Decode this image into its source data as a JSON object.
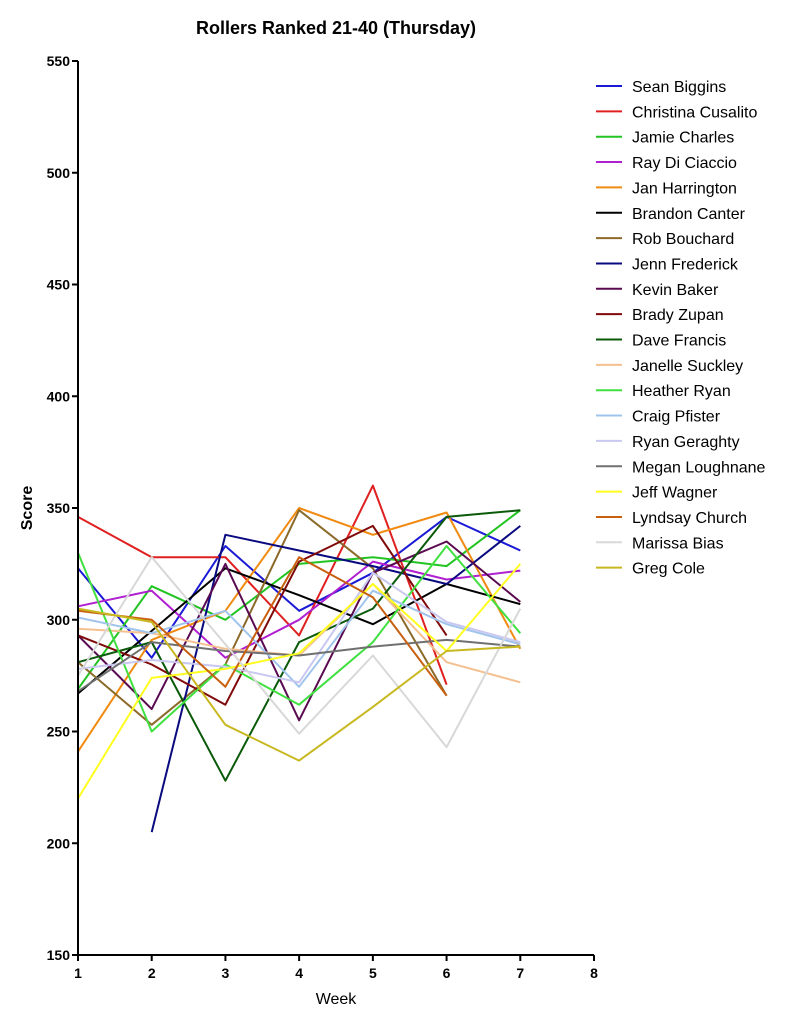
{
  "chart_data": {
    "type": "line",
    "title": "Rollers Ranked 21-40 (Thursday)",
    "xlabel": "Week",
    "ylabel": "Score",
    "xlim": [
      1,
      8
    ],
    "ylim": [
      150,
      550
    ],
    "x_ticks": [
      1,
      2,
      3,
      4,
      5,
      6,
      7,
      8
    ],
    "y_ticks": [
      150,
      200,
      250,
      300,
      350,
      400,
      450,
      500,
      550
    ],
    "legend_position": "right",
    "series": [
      {
        "name": "Sean Biggins",
        "color": "#1a1ad6",
        "x": [
          1,
          2,
          3,
          4,
          5,
          6,
          7
        ],
        "y": [
          323,
          283,
          333,
          304,
          321,
          346,
          331
        ]
      },
      {
        "name": "Christina Cusalito",
        "color": "#e02020",
        "x": [
          1,
          2,
          3,
          4,
          5,
          6
        ],
        "y": [
          346,
          328,
          328,
          293,
          360,
          271
        ]
      },
      {
        "name": "Jamie Charles",
        "color": "#22c422",
        "x": [
          1,
          2,
          3,
          4,
          5,
          6,
          7
        ],
        "y": [
          269,
          315,
          300,
          325,
          328,
          324,
          349
        ]
      },
      {
        "name": "Ray Di Ciaccio",
        "color": "#b020d0",
        "x": [
          1,
          2,
          3,
          4,
          5,
          6,
          7
        ],
        "y": [
          306,
          313,
          283,
          300,
          326,
          318,
          322
        ]
      },
      {
        "name": "Jan Harrington",
        "color": "#f08a10",
        "x": [
          1,
          2,
          3,
          4,
          5,
          6,
          7
        ],
        "y": [
          241,
          291,
          304,
          350,
          338,
          348,
          287
        ]
      },
      {
        "name": "Brandon Canter",
        "color": "#000000",
        "x": [
          1,
          2,
          3,
          4,
          5,
          6,
          7
        ],
        "y": [
          267,
          295,
          323,
          311,
          298,
          316,
          307
        ]
      },
      {
        "name": "Rob Bouchard",
        "color": "#8b6a2a",
        "x": [
          1,
          2,
          3,
          4,
          5,
          6
        ],
        "y": [
          281,
          253,
          280,
          349,
          323,
          266
        ]
      },
      {
        "name": "Jenn Frederick",
        "color": "#0a0a80",
        "x": [
          2,
          3,
          4,
          5,
          6,
          7
        ],
        "y": [
          205,
          338,
          331,
          324,
          316,
          342
        ]
      },
      {
        "name": "Kevin Baker",
        "color": "#5a0a50",
        "x": [
          1,
          2,
          3,
          4,
          5,
          6,
          7
        ],
        "y": [
          293,
          260,
          325,
          255,
          321,
          335,
          308
        ]
      },
      {
        "name": "Brady Zupan",
        "color": "#800a0a",
        "x": [
          1,
          2,
          3,
          4,
          5,
          6
        ],
        "y": [
          293,
          280,
          262,
          326,
          342,
          293
        ]
      },
      {
        "name": "Dave Francis",
        "color": "#0a5a0a",
        "x": [
          1,
          2,
          3,
          4,
          5,
          6,
          7
        ],
        "y": [
          281,
          290,
          228,
          290,
          305,
          346,
          349
        ]
      },
      {
        "name": "Janelle Suckley",
        "color": "#f5c090",
        "x": [
          1,
          2,
          3,
          4,
          5,
          6,
          7
        ],
        "y": [
          296,
          294,
          287,
          284,
          316,
          281,
          272
        ]
      },
      {
        "name": "Heather Ryan",
        "color": "#40e040",
        "x": [
          1,
          2,
          3,
          4,
          5,
          6,
          7
        ],
        "y": [
          330,
          250,
          280,
          262,
          290,
          333,
          294
        ]
      },
      {
        "name": "Craig Pfister",
        "color": "#a0c4ec",
        "x": [
          1,
          2,
          3,
          4,
          5,
          6,
          7
        ],
        "y": [
          301,
          294,
          304,
          270,
          313,
          298,
          289
        ]
      },
      {
        "name": "Ryan Geraghty",
        "color": "#c8c8f0",
        "x": [
          1,
          2,
          3,
          4,
          5,
          6,
          7
        ],
        "y": [
          278,
          282,
          279,
          272,
          321,
          299,
          290
        ]
      },
      {
        "name": "Megan Loughnane",
        "color": "#707070",
        "x": [
          1,
          2,
          3,
          4,
          5,
          6,
          7
        ],
        "y": [
          268,
          290,
          286,
          284,
          288,
          291,
          288
        ]
      },
      {
        "name": "Jeff Wagner",
        "color": "#ffff20",
        "x": [
          1,
          2,
          3,
          4,
          5,
          6,
          7
        ],
        "y": [
          220,
          274,
          278,
          285,
          316,
          286,
          325
        ]
      },
      {
        "name": "Lyndsay Church",
        "color": "#c86010",
        "x": [
          1,
          2,
          3,
          4,
          5,
          6
        ],
        "y": [
          304,
          300,
          270,
          328,
          310,
          266
        ]
      },
      {
        "name": "Marissa Bias",
        "color": "#d8d8d8",
        "x": [
          1,
          2,
          3,
          4,
          5,
          6,
          7
        ],
        "y": [
          275,
          328,
          289,
          249,
          284,
          243,
          305
        ]
      },
      {
        "name": "Greg Cole",
        "color": "#c8b820",
        "x": [
          1,
          2,
          3,
          4,
          5,
          6,
          7
        ],
        "y": [
          305,
          299,
          253,
          237,
          261,
          286,
          288
        ]
      }
    ]
  }
}
